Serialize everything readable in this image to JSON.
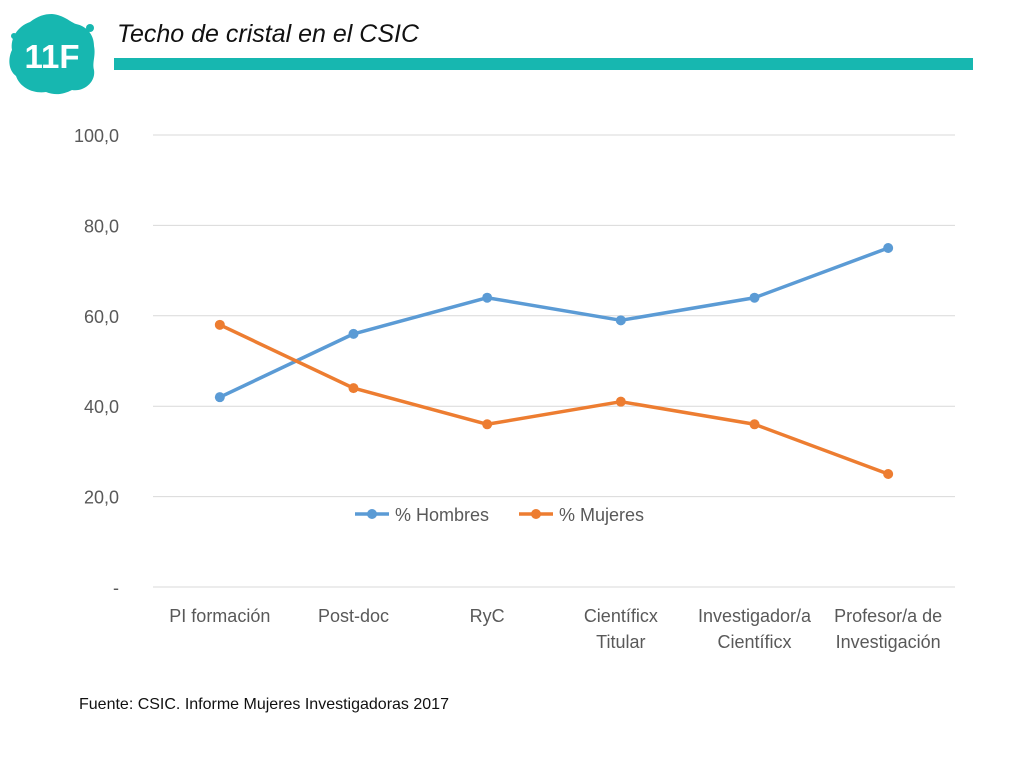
{
  "header": {
    "logo_text": "11F",
    "title": "Techo de cristal en el CSIC",
    "accent_color": "#17b7b0"
  },
  "chart_data": {
    "type": "line",
    "categories": [
      [
        "PI formación"
      ],
      [
        "Post-doc"
      ],
      [
        "RyC"
      ],
      [
        "Científicx",
        "Titular"
      ],
      [
        "Investigador/a",
        "Científicx"
      ],
      [
        "Profesor/a de",
        "Investigación"
      ]
    ],
    "series": [
      {
        "name": "% Hombres",
        "values": [
          42,
          56,
          64,
          59,
          64,
          75
        ],
        "color": "#5b9bd5"
      },
      {
        "name": "% Mujeres",
        "values": [
          58,
          44,
          36,
          41,
          36,
          25
        ],
        "color": "#ed7d31"
      }
    ],
    "ylim": [
      0,
      100
    ],
    "yticks": [
      0,
      20,
      40,
      60,
      80,
      100
    ],
    "ytick_labels": [
      "-",
      "20,0",
      "40,0",
      "60,0",
      "80,0",
      "100,0"
    ],
    "grid": true,
    "legend_position": "inside-center"
  },
  "footer": {
    "source": "Fuente: CSIC. Informe Mujeres Investigadoras 2017"
  }
}
